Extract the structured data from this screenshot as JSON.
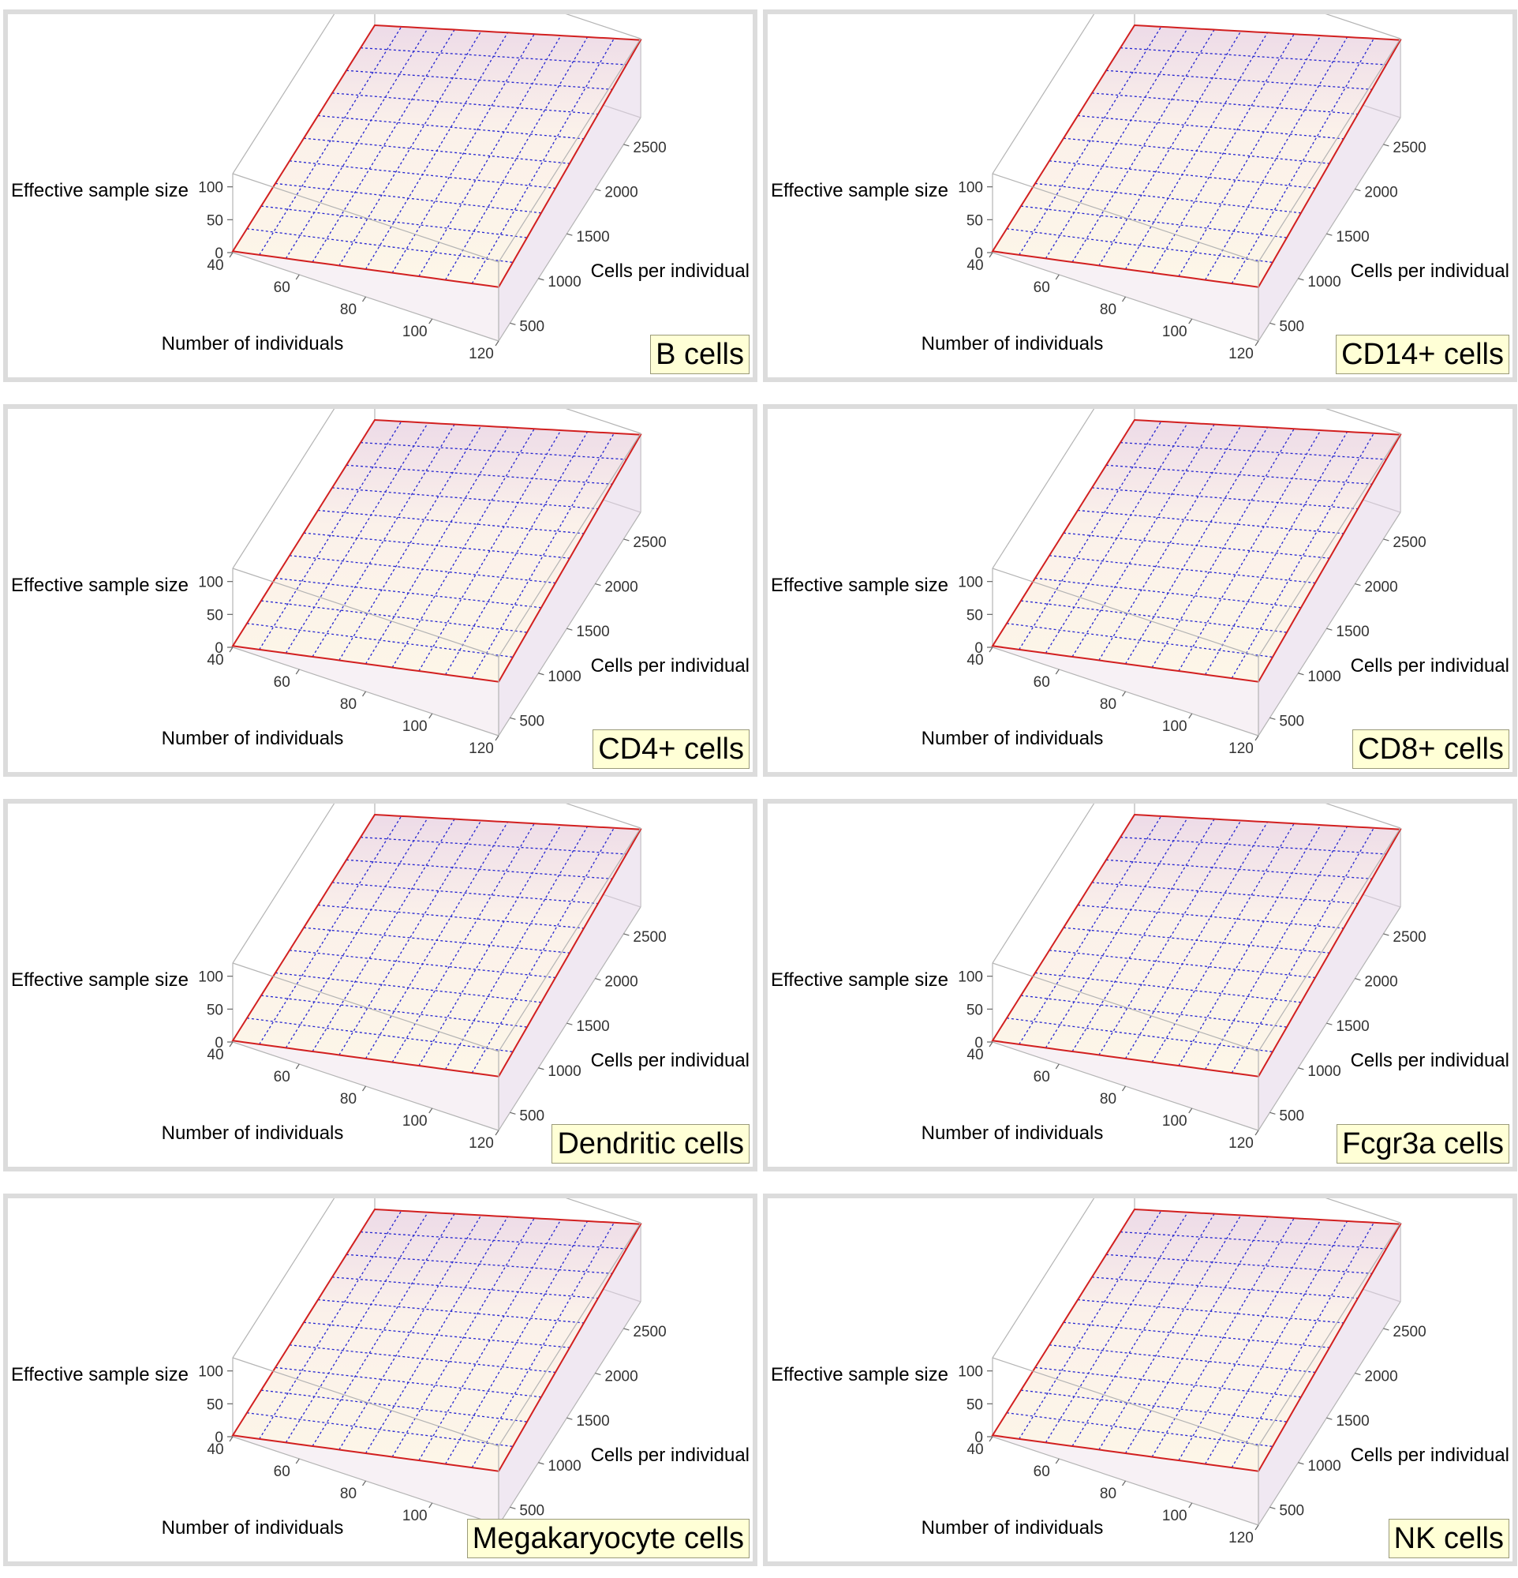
{
  "figure": {
    "axis_labels": {
      "x": "Number of individuals",
      "y": "Cells per individual",
      "z": "Effective sample size"
    }
  },
  "chart_data": [
    {
      "type": "surface3d",
      "title": "B cells",
      "xlabel": "Number of individuals",
      "ylabel": "Cells per individual",
      "zlabel": "Effective sample size",
      "x_ticks": [
        40,
        60,
        80,
        100,
        120
      ],
      "y_ticks": [
        500,
        1000,
        1500,
        2000,
        2500
      ],
      "z_ticks": [
        0,
        50,
        100
      ],
      "xlim": [
        40,
        120
      ],
      "ylim": [
        300,
        2800
      ],
      "zlim": [
        0,
        120
      ],
      "x": [
        40,
        120
      ],
      "y": [
        300,
        2800
      ],
      "z": [
        [
          2,
          82
        ],
        [
          6,
          118
        ]
      ],
      "colors": {
        "surface": "#fdf6e8",
        "edge": "#d22020",
        "mesh": "#2626d0",
        "side": "#e3d6e8"
      }
    },
    {
      "type": "surface3d",
      "title": "CD14+ cells",
      "xlabel": "Number of individuals",
      "ylabel": "Cells per individual",
      "zlabel": "Effective sample size",
      "x_ticks": [
        40,
        60,
        80,
        100,
        120
      ],
      "y_ticks": [
        500,
        1000,
        1500,
        2000,
        2500
      ],
      "z_ticks": [
        0,
        50,
        100
      ],
      "xlim": [
        40,
        120
      ],
      "ylim": [
        300,
        2800
      ],
      "zlim": [
        0,
        120
      ],
      "x": [
        40,
        120
      ],
      "y": [
        300,
        2800
      ],
      "z": [
        [
          2,
          82
        ],
        [
          6,
          118
        ]
      ],
      "colors": {
        "surface": "#fdf6e8",
        "edge": "#d22020",
        "mesh": "#2626d0",
        "side": "#e3d6e8"
      }
    },
    {
      "type": "surface3d",
      "title": "CD4+ cells",
      "xlabel": "Number of individuals",
      "ylabel": "Cells per individual",
      "zlabel": "Effective sample size",
      "x_ticks": [
        40,
        60,
        80,
        100,
        120
      ],
      "y_ticks": [
        500,
        1000,
        1500,
        2000,
        2500
      ],
      "z_ticks": [
        0,
        50,
        100
      ],
      "xlim": [
        40,
        120
      ],
      "ylim": [
        300,
        2800
      ],
      "zlim": [
        0,
        120
      ],
      "x": [
        40,
        120
      ],
      "y": [
        300,
        2800
      ],
      "z": [
        [
          2,
          82
        ],
        [
          6,
          118
        ]
      ],
      "colors": {
        "surface": "#fdf6e8",
        "edge": "#d22020",
        "mesh": "#2626d0",
        "side": "#e3d6e8"
      }
    },
    {
      "type": "surface3d",
      "title": "CD8+ cells",
      "xlabel": "Number of individuals",
      "ylabel": "Cells per individual",
      "zlabel": "Effective sample size",
      "x_ticks": [
        40,
        60,
        80,
        100,
        120
      ],
      "y_ticks": [
        500,
        1000,
        1500,
        2000,
        2500
      ],
      "z_ticks": [
        0,
        50,
        100
      ],
      "xlim": [
        40,
        120
      ],
      "ylim": [
        300,
        2800
      ],
      "zlim": [
        0,
        120
      ],
      "x": [
        40,
        120
      ],
      "y": [
        300,
        2800
      ],
      "z": [
        [
          2,
          82
        ],
        [
          6,
          118
        ]
      ],
      "colors": {
        "surface": "#fdf6e8",
        "edge": "#d22020",
        "mesh": "#2626d0",
        "side": "#e3d6e8"
      }
    },
    {
      "type": "surface3d",
      "title": "Dendritic cells",
      "xlabel": "Number of individuals",
      "ylabel": "Cells per individual",
      "zlabel": "Effective sample size",
      "x_ticks": [
        40,
        60,
        80,
        100,
        120
      ],
      "y_ticks": [
        500,
        1000,
        1500,
        2000,
        2500
      ],
      "z_ticks": [
        0,
        50,
        100
      ],
      "xlim": [
        40,
        120
      ],
      "ylim": [
        300,
        2800
      ],
      "zlim": [
        0,
        120
      ],
      "x": [
        40,
        120
      ],
      "y": [
        300,
        2800
      ],
      "z": [
        [
          2,
          82
        ],
        [
          6,
          118
        ]
      ],
      "colors": {
        "surface": "#fdf6e8",
        "edge": "#d22020",
        "mesh": "#2626d0",
        "side": "#e3d6e8"
      }
    },
    {
      "type": "surface3d",
      "title": "Fcgr3a cells",
      "xlabel": "Number of individuals",
      "ylabel": "Cells per individual",
      "zlabel": "Effective sample size",
      "x_ticks": [
        40,
        60,
        80,
        100,
        120
      ],
      "y_ticks": [
        500,
        1000,
        1500,
        2000,
        2500
      ],
      "z_ticks": [
        0,
        50,
        100
      ],
      "xlim": [
        40,
        120
      ],
      "ylim": [
        300,
        2800
      ],
      "zlim": [
        0,
        120
      ],
      "x": [
        40,
        120
      ],
      "y": [
        300,
        2800
      ],
      "z": [
        [
          2,
          82
        ],
        [
          6,
          118
        ]
      ],
      "colors": {
        "surface": "#fdf6e8",
        "edge": "#d22020",
        "mesh": "#2626d0",
        "side": "#e3d6e8"
      }
    },
    {
      "type": "surface3d",
      "title": "Megakaryocyte cells",
      "xlabel": "Number of individuals",
      "ylabel": "Cells per individual",
      "zlabel": "Effective sample size",
      "x_ticks": [
        40,
        60,
        80,
        100,
        120
      ],
      "y_ticks": [
        500,
        1000,
        1500,
        2000,
        2500
      ],
      "z_ticks": [
        0,
        50,
        100
      ],
      "xlim": [
        40,
        120
      ],
      "ylim": [
        300,
        2800
      ],
      "zlim": [
        0,
        120
      ],
      "x": [
        40,
        120
      ],
      "y": [
        300,
        2800
      ],
      "z": [
        [
          2,
          82
        ],
        [
          6,
          118
        ]
      ],
      "colors": {
        "surface": "#fdf6e8",
        "edge": "#d22020",
        "mesh": "#2626d0",
        "side": "#e3d6e8"
      }
    },
    {
      "type": "surface3d",
      "title": "NK cells",
      "xlabel": "Number of individuals",
      "ylabel": "Cells per individual",
      "zlabel": "Effective sample size",
      "x_ticks": [
        40,
        60,
        80,
        100,
        120
      ],
      "y_ticks": [
        500,
        1000,
        1500,
        2000,
        2500
      ],
      "z_ticks": [
        0,
        50,
        100
      ],
      "xlim": [
        40,
        120
      ],
      "ylim": [
        300,
        2800
      ],
      "zlim": [
        0,
        120
      ],
      "x": [
        40,
        120
      ],
      "y": [
        300,
        2800
      ],
      "z": [
        [
          2,
          82
        ],
        [
          6,
          118
        ]
      ],
      "colors": {
        "surface": "#fdf6e8",
        "edge": "#d22020",
        "mesh": "#2626d0",
        "side": "#e3d6e8"
      }
    }
  ]
}
